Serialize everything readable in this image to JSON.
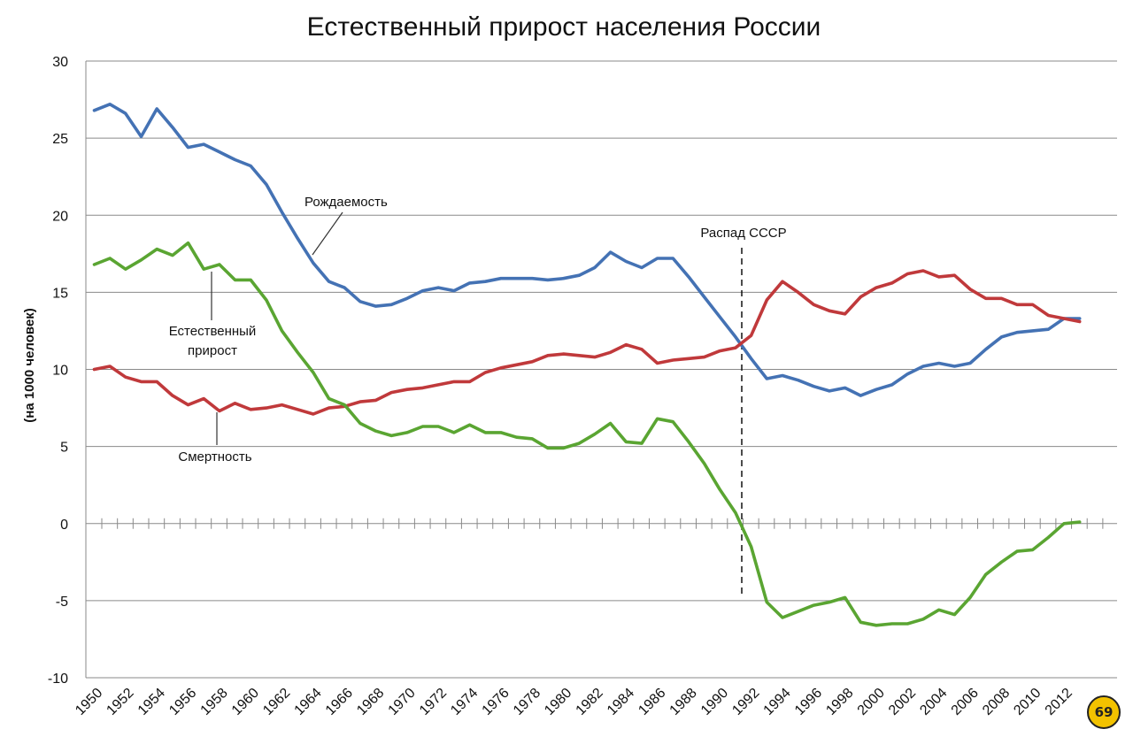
{
  "chart_data": {
    "type": "line",
    "title": "Естественный прирост населения России",
    "ylabel": "(на 1000 человек)",
    "xlabel": "",
    "ylim": [
      -10,
      30
    ],
    "yticks": [
      "30",
      "25",
      "20",
      "15",
      "10",
      "5",
      "0",
      "-5",
      "-10"
    ],
    "xtick_labels": [
      "1950",
      "1952",
      "1954",
      "1956",
      "1958",
      "1960",
      "1962",
      "1964",
      "1966",
      "1968",
      "1970",
      "1972",
      "1974",
      "1976",
      "1978",
      "1980",
      "1982",
      "1984",
      "1986",
      "1988",
      "1990",
      "1992",
      "1994",
      "1996",
      "1998",
      "2000",
      "2002",
      "2004",
      "2006",
      "2008",
      "2010",
      "2012"
    ],
    "x": [
      1950,
      1951,
      1952,
      1953,
      1954,
      1955,
      1956,
      1957,
      1958,
      1959,
      1960,
      1961,
      1962,
      1963,
      1964,
      1965,
      1966,
      1967,
      1968,
      1969,
      1970,
      1971,
      1972,
      1973,
      1974,
      1975,
      1976,
      1977,
      1978,
      1979,
      1980,
      1981,
      1982,
      1983,
      1984,
      1985,
      1986,
      1987,
      1988,
      1989,
      1990,
      1991,
      1992,
      1993,
      1994,
      1995,
      1996,
      1997,
      1998,
      1999,
      2000,
      2001,
      2002,
      2003,
      2004,
      2005,
      2006,
      2007,
      2008,
      2009,
      2010,
      2011,
      2012,
      2013
    ],
    "series": [
      {
        "name": "Рождаемость",
        "color": "#4472b4",
        "values": [
          26.8,
          27.2,
          26.6,
          25.1,
          26.9,
          25.7,
          24.4,
          24.6,
          24.1,
          23.6,
          23.2,
          22.0,
          20.2,
          18.5,
          16.9,
          15.7,
          15.3,
          14.4,
          14.1,
          14.2,
          14.6,
          15.1,
          15.3,
          15.1,
          15.6,
          15.7,
          15.9,
          15.9,
          15.9,
          15.8,
          15.9,
          16.1,
          16.6,
          17.6,
          17.0,
          16.6,
          17.2,
          17.2,
          16.0,
          14.7,
          13.4,
          12.1,
          10.7,
          9.4,
          9.6,
          9.3,
          8.9,
          8.6,
          8.8,
          8.3,
          8.7,
          9.0,
          9.7,
          10.2,
          10.4,
          10.2,
          10.4,
          11.3,
          12.1,
          12.4,
          12.5,
          12.6,
          13.3,
          13.3
        ]
      },
      {
        "name": "Смертность",
        "color": "#c0393b",
        "values": [
          10.0,
          10.2,
          9.5,
          9.2,
          9.2,
          8.3,
          7.7,
          8.1,
          7.3,
          7.8,
          7.4,
          7.5,
          7.7,
          7.4,
          7.1,
          7.5,
          7.6,
          7.9,
          8.0,
          8.5,
          8.7,
          8.8,
          9.0,
          9.2,
          9.2,
          9.8,
          10.1,
          10.3,
          10.5,
          10.9,
          11.0,
          10.9,
          10.8,
          11.1,
          11.6,
          11.3,
          10.4,
          10.6,
          10.7,
          10.8,
          11.2,
          11.4,
          12.2,
          14.5,
          15.7,
          15.0,
          14.2,
          13.8,
          13.6,
          14.7,
          15.3,
          15.6,
          16.2,
          16.4,
          16.0,
          16.1,
          15.2,
          14.6,
          14.6,
          14.2,
          14.2,
          13.5,
          13.3,
          13.1
        ]
      },
      {
        "name": "Естественный прирост",
        "color": "#5aa532",
        "values": [
          16.8,
          17.2,
          16.5,
          17.1,
          17.8,
          17.4,
          18.2,
          16.5,
          16.8,
          15.8,
          15.8,
          14.5,
          12.5,
          11.1,
          9.8,
          8.1,
          7.7,
          6.5,
          6.0,
          5.7,
          5.9,
          6.3,
          6.3,
          5.9,
          6.4,
          5.9,
          5.9,
          5.6,
          5.5,
          4.9,
          4.9,
          5.2,
          5.8,
          6.5,
          5.3,
          5.2,
          6.8,
          6.6,
          5.3,
          3.9,
          2.2,
          0.7,
          -1.5,
          -5.1,
          -6.1,
          -5.7,
          -5.3,
          -5.1,
          -4.8,
          -6.4,
          -6.6,
          -6.5,
          -6.5,
          -6.2,
          -5.6,
          -5.9,
          -4.8,
          -3.3,
          -2.5,
          -1.8,
          -1.7,
          -0.9,
          0.0,
          0.1
        ]
      }
    ],
    "annotations": [
      {
        "text": "Рождаемость"
      },
      {
        "text": "Естественный"
      },
      {
        "text": "прирост"
      },
      {
        "text": "Смертность"
      },
      {
        "text": "Распад СССР"
      }
    ],
    "grid": true,
    "legend": "none"
  },
  "badge": {
    "text": "69"
  }
}
